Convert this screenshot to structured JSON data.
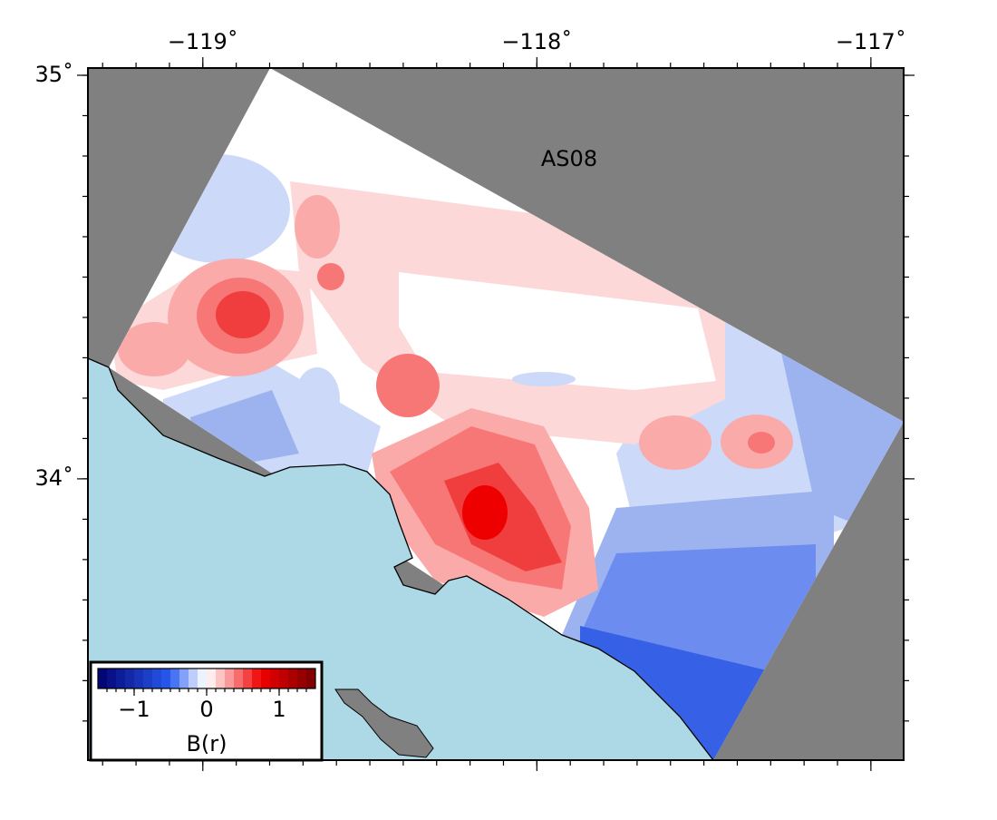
{
  "map": {
    "label": "AS08",
    "xlim": [
      -119.344,
      -116.902
    ],
    "ylim": [
      33.303,
      35.018
    ],
    "lon_ticks": [
      {
        "value": -119,
        "label": "−119˚"
      },
      {
        "value": -118,
        "label": "−118˚"
      },
      {
        "value": -117,
        "label": "−117˚"
      }
    ],
    "lat_ticks": [
      {
        "value": 35,
        "label": "35˚"
      },
      {
        "value": 34,
        "label": "34˚"
      }
    ],
    "colorbar": {
      "label": "B(r)",
      "range": [
        -1.5,
        1.5
      ],
      "ticks": [
        {
          "value": -1,
          "label": "−1"
        },
        {
          "value": 0,
          "label": "0"
        },
        {
          "value": 1,
          "label": "1"
        }
      ]
    }
  }
}
